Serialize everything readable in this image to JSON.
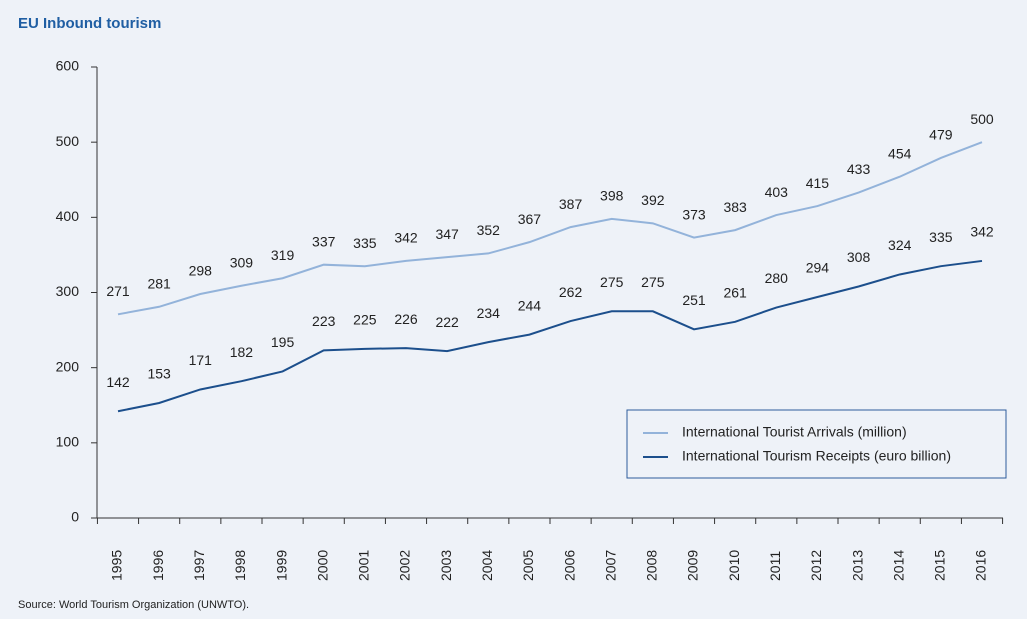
{
  "chart_data": {
    "type": "line",
    "title": "EU Inbound tourism",
    "categories": [
      "1995",
      "1996",
      "1997",
      "1998",
      "1999",
      "2000",
      "2001",
      "2002",
      "2003",
      "2004",
      "2005",
      "2006",
      "2007",
      "2008",
      "2009",
      "2010",
      "2011",
      "2012",
      "2013",
      "2014",
      "2015",
      "2016"
    ],
    "series": [
      {
        "name": "International Tourist Arrivals (million)",
        "color": "#93b3da",
        "values": [
          271,
          281,
          298,
          309,
          319,
          337,
          335,
          342,
          347,
          352,
          367,
          387,
          398,
          392,
          373,
          383,
          403,
          415,
          433,
          454,
          479,
          500
        ]
      },
      {
        "name": "International Tourism Receipts (euro billion)",
        "color": "#1c4f8c",
        "values": [
          142,
          153,
          171,
          182,
          195,
          223,
          225,
          226,
          222,
          234,
          244,
          262,
          275,
          275,
          251,
          261,
          280,
          294,
          308,
          324,
          335,
          342
        ]
      }
    ],
    "ylim": [
      0,
      600
    ],
    "yticks": [
      0,
      100,
      200,
      300,
      400,
      500,
      600
    ],
    "legend": "lower right",
    "source": "Source: World Tourism Organization (UNWTO)."
  }
}
